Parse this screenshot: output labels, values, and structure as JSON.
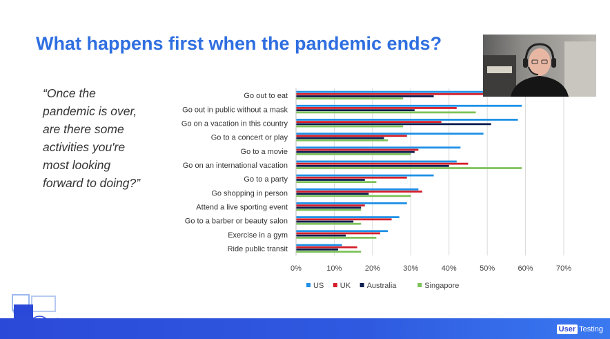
{
  "slide": {
    "title": "What happens first when the pandemic ends?",
    "quote_lines": [
      "“Once the",
      "pandemic is over,",
      "are there some",
      "activities you're",
      "most looking",
      "forward to doing?”"
    ]
  },
  "colors": {
    "title": "#2f6fe0",
    "US": "#1e90e6",
    "UK": "#d41f2a",
    "Australia": "#0c1d4f",
    "Singapore": "#7ec25a"
  },
  "webcam": {
    "icon": "presenter-video-feed"
  },
  "footer": {
    "logo_box": "User",
    "logo_text": "Testing"
  },
  "chart_data": {
    "type": "bar",
    "orientation": "horizontal",
    "categories": [
      "Go out to eat",
      "Go out in public without a mask",
      "Go on a vacation in this country",
      "Go to a concert or play",
      "Go to a movie",
      "Go on an international vacation",
      "Go to a party",
      "Go shopping in person",
      "Attend a live sporting event",
      "Go to a barber or beauty salon",
      "Exercise in a gym",
      "Ride public transit"
    ],
    "series": [
      {
        "name": "US",
        "values": [
          50,
          59,
          58,
          49,
          43,
          42,
          36,
          32,
          29,
          27,
          24,
          12
        ]
      },
      {
        "name": "UK",
        "values": [
          50,
          42,
          38,
          29,
          32,
          45,
          29,
          33,
          18,
          25,
          22,
          16
        ]
      },
      {
        "name": "Australia",
        "values": [
          36,
          31,
          51,
          23,
          31,
          40,
          18,
          19,
          17,
          15,
          13,
          11
        ]
      },
      {
        "name": "Singapore",
        "values": [
          28,
          47,
          28,
          24,
          30,
          59,
          21,
          30,
          17,
          17,
          21,
          17
        ]
      }
    ],
    "xlim": [
      0,
      70
    ],
    "xticks": [
      "0%",
      "10%",
      "20%",
      "30%",
      "40%",
      "50%",
      "60%",
      "70%"
    ],
    "grid": true,
    "legend": "bottom"
  }
}
